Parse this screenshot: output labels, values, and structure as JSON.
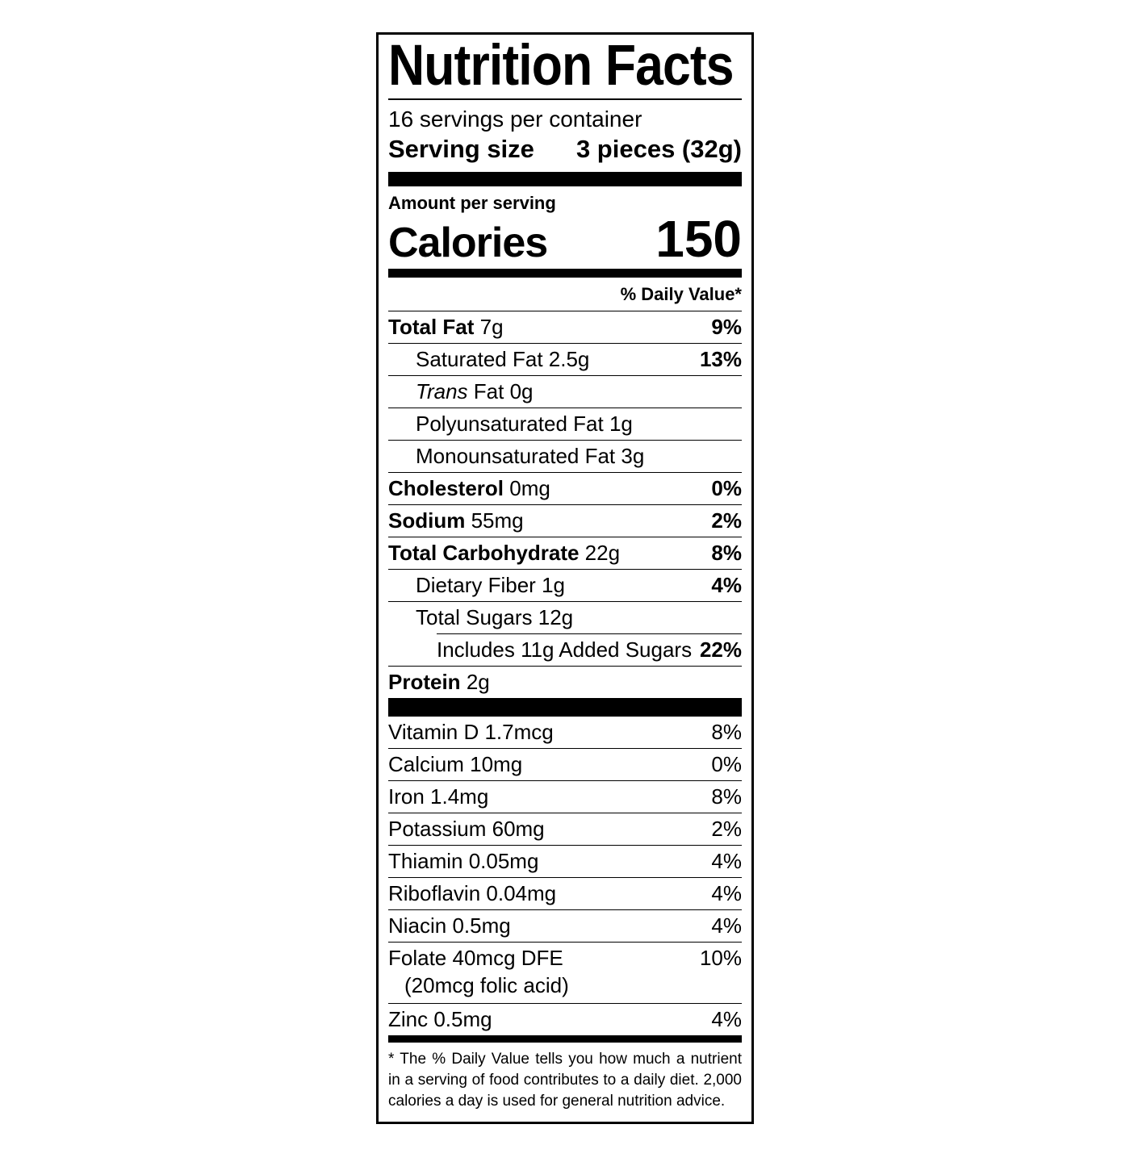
{
  "label": {
    "title": "Nutrition Facts",
    "servings_per_container": "16 servings per container",
    "serving_size": {
      "label": "Serving size",
      "value": "3 pieces (32g)"
    },
    "amount_per_serving": "Amount per serving",
    "calories": {
      "label": "Calories",
      "value": "150"
    },
    "daily_value_header": "% Daily Value*",
    "nutrient_rows": [
      {
        "name": "Total Fat",
        "amount": "7g",
        "dv": "9%",
        "bold_name": true,
        "indent": 0
      },
      {
        "name": "Saturated Fat",
        "amount": "2.5g",
        "dv": "13%",
        "indent": 1
      },
      {
        "name": "Trans",
        "name_suffix": "Fat",
        "amount": "0g",
        "italic_name": true,
        "indent": 1
      },
      {
        "name": "Polyunsaturated Fat",
        "amount": "1g",
        "indent": 1
      },
      {
        "name": "Monounsaturated Fat",
        "amount": "3g",
        "indent": 1
      },
      {
        "name": "Cholesterol",
        "amount": "0mg",
        "dv": "0%",
        "bold_name": true,
        "indent": 0
      },
      {
        "name": "Sodium",
        "amount": "55mg",
        "dv": "2%",
        "bold_name": true,
        "indent": 0
      },
      {
        "name": "Total Carbohydrate",
        "amount": "22g",
        "dv": "8%",
        "bold_name": true,
        "indent": 0
      },
      {
        "name": "Dietary Fiber",
        "amount": "1g",
        "dv": "4%",
        "indent": 1
      },
      {
        "name": "Total Sugars",
        "amount": "12g",
        "indent": 1
      },
      {
        "name": "Includes 11g Added Sugars",
        "dv": "22%",
        "indent": 2,
        "sep_indented": true
      },
      {
        "name": "Protein",
        "amount": "2g",
        "bold_name": true,
        "indent": 0
      }
    ],
    "vitamin_rows": [
      {
        "name": "Vitamin D 1.7mcg",
        "dv": "8%"
      },
      {
        "name": "Calcium 10mg",
        "dv": "0%"
      },
      {
        "name": "Iron 1.4mg",
        "dv": "8%"
      },
      {
        "name": "Potassium 60mg",
        "dv": "2%"
      },
      {
        "name": "Thiamin 0.05mg",
        "dv": "4%"
      },
      {
        "name": "Riboflavin 0.04mg",
        "dv": "4%"
      },
      {
        "name": "Niacin 0.5mg",
        "dv": "4%"
      },
      {
        "name": "Folate 40mcg DFE",
        "dv": "10%",
        "line2": "(20mcg folic acid)"
      },
      {
        "name": "Zinc 0.5mg",
        "dv": "4%"
      }
    ],
    "footnote": "* The % Daily Value tells you how much a nutrient in a serving of food contributes to a daily diet. 2,000 calories a day is used for general nutrition advice."
  }
}
